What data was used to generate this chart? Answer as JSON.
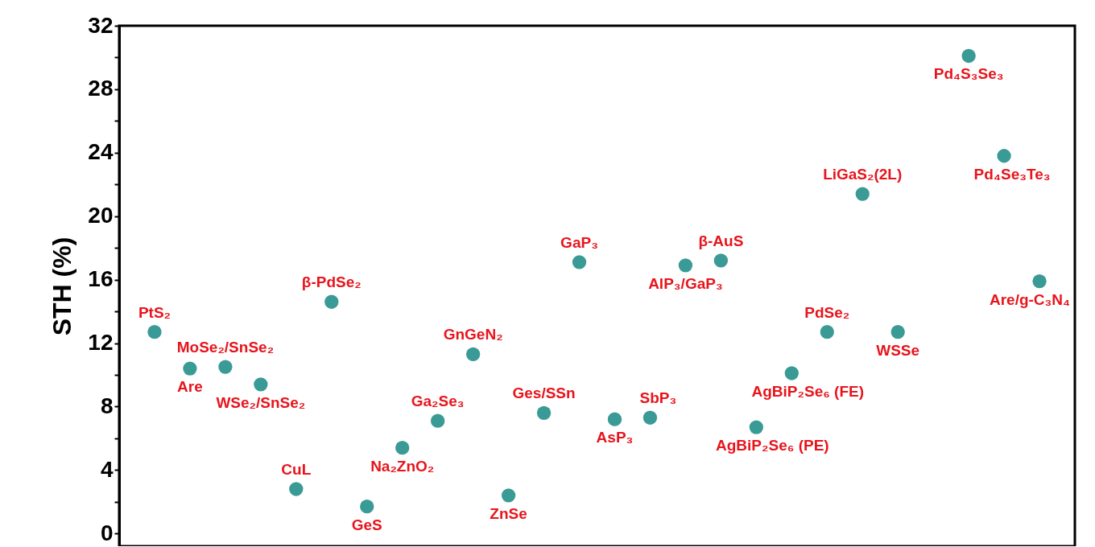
{
  "chart_data": {
    "type": "scatter",
    "ylabel": "STH (%)",
    "marker": "circle",
    "tick_labels": "y",
    "categories": [
      "PtS₂",
      "Are",
      "MoSe₂/SnSe₂",
      "WSe₂/SnSe₂",
      "CuL",
      "β-PdSe₂",
      "GeS",
      "Na₂ZnO₂",
      "Ga₂Se₃",
      "GnGeN₂",
      "ZnSe",
      "Ges/SSn",
      "GaP₃",
      "AsP₃",
      "SbP₃",
      "AlP₃/GaP₃",
      "β-AuS",
      "AgBiP₂Se₆ (PE)",
      "AgBiP₂Se₆ (FE)",
      "PdSe₂",
      "LiGaS₂(2L)",
      "WSSe",
      null,
      "Pd₄S₃Se₃",
      "Pd₄Se₃Te₃",
      "Are/g-C₃N₄"
    ],
    "series": [
      {
        "color": "#3a9a96",
        "values": [
          12.7,
          10.4,
          10.5,
          9.4,
          2.8,
          14.6,
          1.7,
          5.4,
          7.1,
          11.3,
          2.4,
          7.6,
          17.1,
          7.2,
          7.3,
          16.9,
          17.2,
          6.7,
          10.1,
          12.7,
          21.4,
          12.7,
          null,
          30.1,
          23.8,
          15.9
        ]
      }
    ],
    "ylim": [
      -0.8,
      32
    ],
    "yticks": [
      0,
      {
        "value": 2,
        "label": null
      },
      4,
      {
        "value": 6,
        "label": null
      },
      8,
      {
        "value": 10,
        "label": null
      },
      12,
      {
        "value": 14,
        "label": null
      },
      16,
      {
        "value": 18,
        "label": null
      },
      20,
      {
        "value": 22,
        "label": null
      },
      24,
      {
        "value": 26,
        "label": null
      },
      28,
      {
        "value": 30,
        "label": null
      },
      32
    ]
  }
}
